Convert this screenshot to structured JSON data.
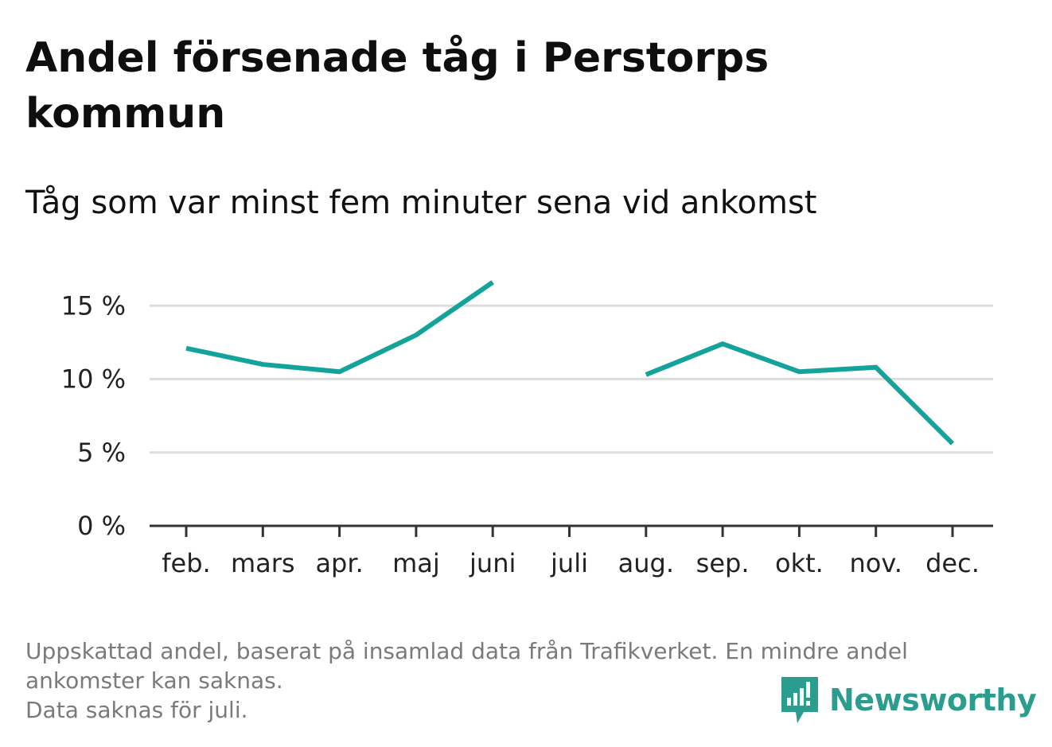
{
  "header": {
    "title": "Andel försenade tåg i Perstorps kommun",
    "subtitle": "Tåg som var minst fem minuter sena vid ankomst"
  },
  "footer": {
    "note_line1": "Uppskattad andel, baserat på insamlad data från Trafikverket. En mindre andel",
    "note_line2": "ankomster kan saknas.",
    "note_line3": "Data saknas för juli.",
    "brand": "Newsworthy",
    "brand_icon": "newsworthy-logo-icon"
  },
  "colors": {
    "line": "#14a39a",
    "grid": "#dddddd",
    "axis": "#333333",
    "brand": "#2a9d8f"
  },
  "chart_data": {
    "type": "line",
    "title": "Andel försenade tåg i Perstorps kommun",
    "subtitle": "Tåg som var minst fem minuter sena vid ankomst",
    "xlabel": "",
    "ylabel": "",
    "categories": [
      "feb.",
      "mars",
      "apr.",
      "maj",
      "juni",
      "juli",
      "aug.",
      "sep.",
      "okt.",
      "nov.",
      "dec."
    ],
    "series": [
      {
        "values": [
          12.1,
          11.0,
          10.5,
          13.0,
          16.6,
          null,
          10.3,
          12.4,
          10.5,
          10.8,
          5.6
        ]
      }
    ],
    "ylim": [
      0,
      17
    ],
    "yticks": [
      0,
      5,
      10,
      15
    ],
    "ytick_labels": [
      "0 %",
      "5 %",
      "10 %",
      "15 %"
    ],
    "grid": true,
    "legend": "none"
  }
}
